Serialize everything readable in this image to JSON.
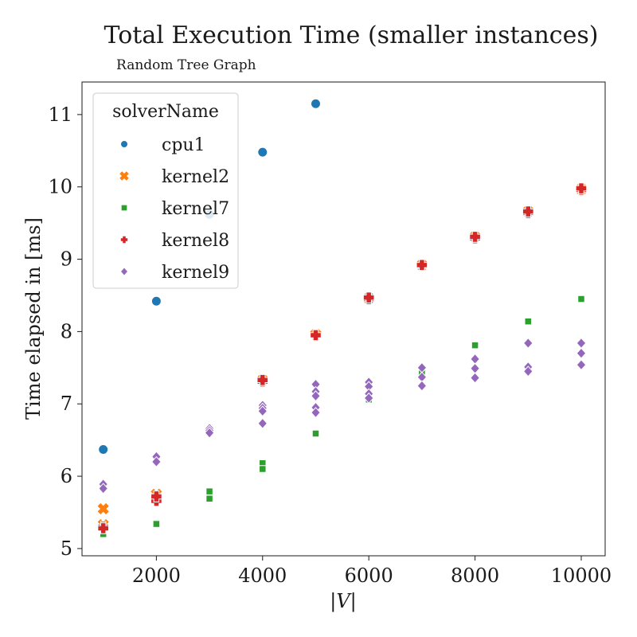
{
  "chart_data": {
    "type": "scatter",
    "title": "Total Execution Time (smaller instances)",
    "subtitle": "Random Tree Graph",
    "xlabel": "|V|",
    "ylabel": "Time elapsed in [ms]",
    "xlim": [
      600,
      10450
    ],
    "ylim": [
      4.9,
      11.45
    ],
    "xticks": [
      2000,
      4000,
      6000,
      8000,
      10000
    ],
    "yticks": [
      5,
      6,
      7,
      8,
      9,
      10,
      11
    ],
    "grid": false,
    "legend": {
      "title": "solverName",
      "placement": "top-left"
    },
    "series": [
      {
        "name": "cpu1",
        "color": "#1f77b4",
        "marker": "circle",
        "points": [
          [
            1000,
            6.37
          ],
          [
            2000,
            8.42
          ],
          [
            3000,
            9.62
          ],
          [
            4000,
            10.48
          ],
          [
            5000,
            11.15
          ]
        ]
      },
      {
        "name": "kernel2",
        "color": "#ff7f0e",
        "marker": "x",
        "points": [
          [
            1000,
            5.55
          ],
          [
            1000,
            5.33
          ],
          [
            2000,
            5.7
          ],
          [
            2000,
            5.75
          ],
          [
            4000,
            7.33
          ],
          [
            5000,
            7.96
          ],
          [
            6000,
            8.46
          ],
          [
            7000,
            8.92
          ],
          [
            8000,
            9.31
          ],
          [
            9000,
            9.66
          ],
          [
            10000,
            9.97
          ]
        ]
      },
      {
        "name": "kernel7",
        "color": "#2ca02c",
        "marker": "square",
        "points": [
          [
            1000,
            5.2
          ],
          [
            1000,
            5.27
          ],
          [
            2000,
            5.35
          ],
          [
            2000,
            5.34
          ],
          [
            3000,
            5.79
          ],
          [
            3000,
            5.69
          ],
          [
            4000,
            6.18
          ],
          [
            4000,
            6.1
          ],
          [
            5000,
            6.59
          ],
          [
            6000,
            7.06
          ],
          [
            7000,
            7.42
          ],
          [
            8000,
            7.81
          ],
          [
            9000,
            8.14
          ],
          [
            10000,
            8.45
          ]
        ]
      },
      {
        "name": "kernel8",
        "color": "#d62728",
        "marker": "plus",
        "points": [
          [
            1000,
            5.3
          ],
          [
            1000,
            5.28
          ],
          [
            2000,
            5.66
          ],
          [
            2000,
            5.72
          ],
          [
            4000,
            7.31
          ],
          [
            4000,
            7.33
          ],
          [
            5000,
            7.94
          ],
          [
            5000,
            7.95
          ],
          [
            6000,
            8.45
          ],
          [
            6000,
            8.47
          ],
          [
            7000,
            8.91
          ],
          [
            7000,
            8.92
          ],
          [
            8000,
            9.29
          ],
          [
            8000,
            9.31
          ],
          [
            9000,
            9.64
          ],
          [
            9000,
            9.66
          ],
          [
            10000,
            9.96
          ],
          [
            10000,
            9.98
          ]
        ]
      },
      {
        "name": "kernel9",
        "color": "#9467bd",
        "marker": "diamond",
        "points": [
          [
            1000,
            5.89
          ],
          [
            1000,
            5.83
          ],
          [
            2000,
            6.27
          ],
          [
            2000,
            6.2
          ],
          [
            3000,
            6.66
          ],
          [
            3000,
            6.63
          ],
          [
            3000,
            6.6
          ],
          [
            4000,
            6.98
          ],
          [
            4000,
            6.94
          ],
          [
            4000,
            6.9
          ],
          [
            4000,
            6.73
          ],
          [
            5000,
            7.27
          ],
          [
            5000,
            7.17
          ],
          [
            5000,
            7.11
          ],
          [
            5000,
            6.95
          ],
          [
            5000,
            6.88
          ],
          [
            6000,
            7.3
          ],
          [
            6000,
            7.24
          ],
          [
            6000,
            7.14
          ],
          [
            6000,
            7.08
          ],
          [
            7000,
            7.5
          ],
          [
            7000,
            7.37
          ],
          [
            7000,
            7.25
          ],
          [
            8000,
            7.62
          ],
          [
            8000,
            7.49
          ],
          [
            8000,
            7.36
          ],
          [
            9000,
            7.84
          ],
          [
            9000,
            7.51
          ],
          [
            9000,
            7.45
          ],
          [
            10000,
            7.84
          ],
          [
            10000,
            7.7
          ],
          [
            10000,
            7.54
          ]
        ]
      }
    ]
  }
}
